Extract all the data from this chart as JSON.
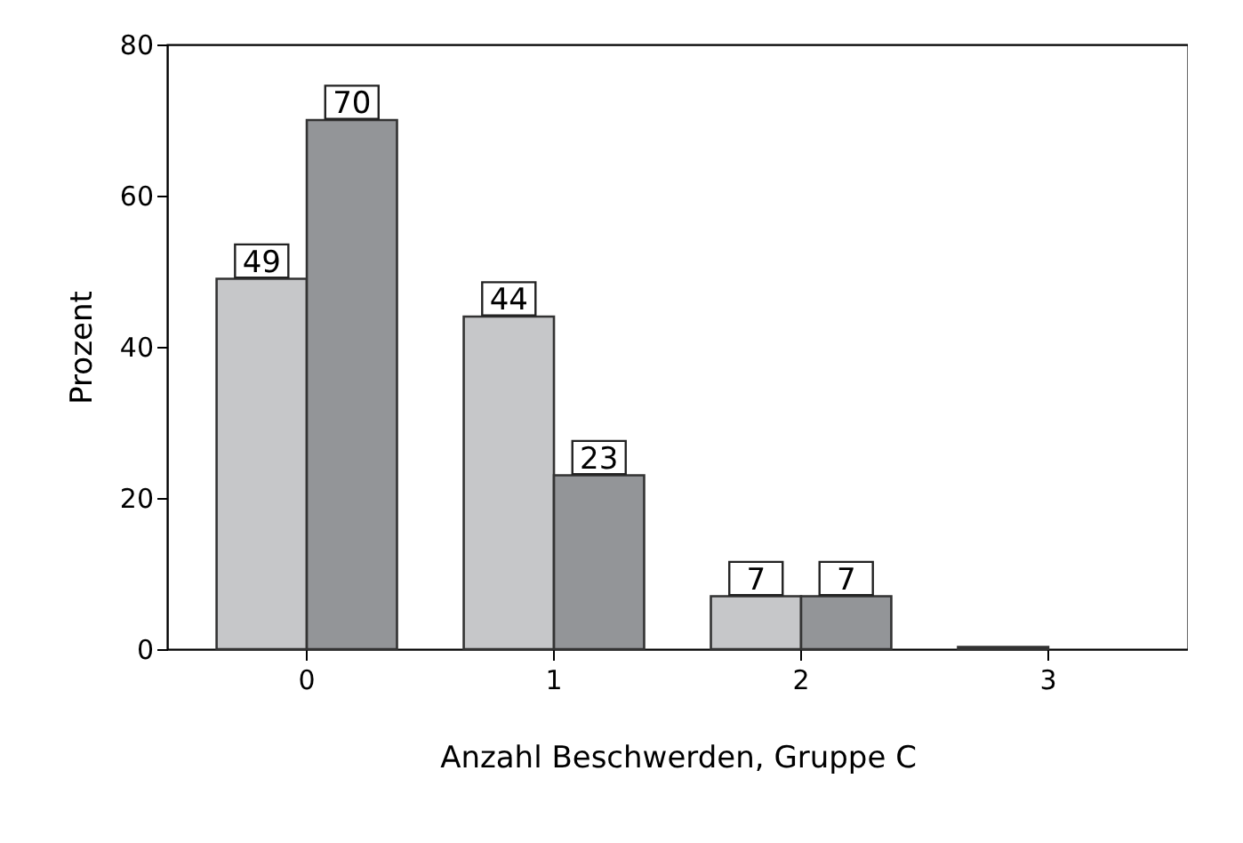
{
  "chart_data": {
    "type": "bar",
    "xlabel": "Anzahl Beschwerden, Gruppe C",
    "ylabel": "Prozent",
    "categories": [
      "0",
      "1",
      "2",
      "3"
    ],
    "series": [
      {
        "color": "#c6c7c9",
        "values": [
          49,
          44,
          7,
          0.3
        ],
        "value_labels": [
          "49",
          "44",
          "7",
          null
        ]
      },
      {
        "color": "#939598",
        "values": [
          70,
          23,
          7,
          null
        ],
        "value_labels": [
          "70",
          "23",
          "7",
          null
        ]
      }
    ],
    "ylim": [
      0,
      80
    ],
    "yticks": [
      0,
      20,
      40,
      60,
      80
    ],
    "legend": false
  }
}
